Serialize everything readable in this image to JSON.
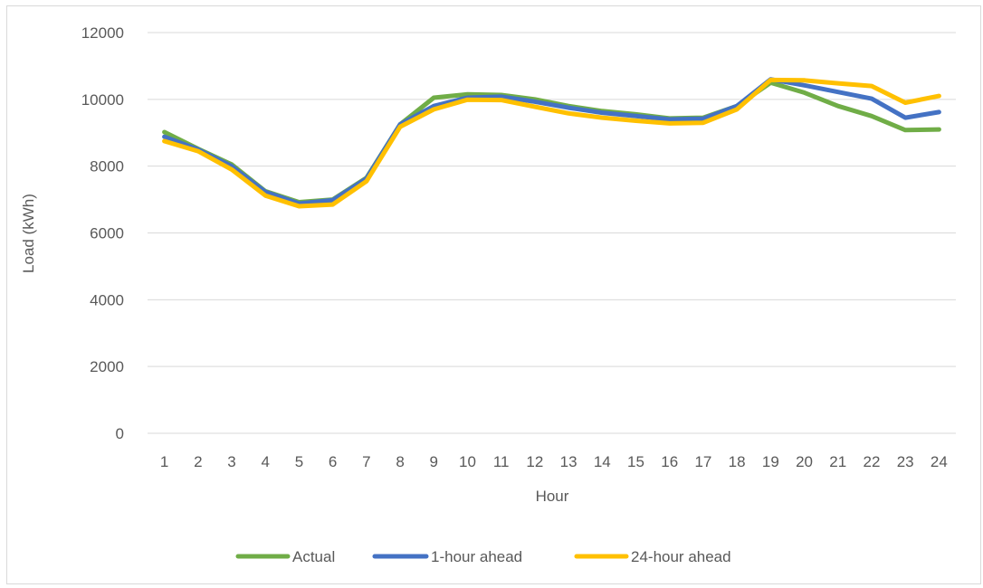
{
  "chart_data": {
    "type": "line",
    "title": "",
    "xlabel": "Hour",
    "ylabel": "Load (kWh)",
    "categories": [
      "1",
      "2",
      "3",
      "4",
      "5",
      "6",
      "7",
      "8",
      "9",
      "10",
      "11",
      "12",
      "13",
      "14",
      "15",
      "16",
      "17",
      "18",
      "19",
      "20",
      "21",
      "22",
      "23",
      "24"
    ],
    "yticks": [
      "0",
      "2000",
      "4000",
      "6000",
      "8000",
      "10000",
      "12000"
    ],
    "ylim": [
      0,
      12000
    ],
    "grid": true,
    "legend_position": "bottom",
    "series": [
      {
        "name": "Actual",
        "color": "#70ad47",
        "values": [
          9020,
          8520,
          8050,
          7250,
          6920,
          7000,
          7650,
          9250,
          10050,
          10150,
          10130,
          10000,
          9800,
          9650,
          9550,
          9430,
          9450,
          9800,
          10500,
          10200,
          9800,
          9500,
          9080,
          9100
        ]
      },
      {
        "name": "1-hour ahead",
        "color": "#4472c4",
        "values": [
          8880,
          8500,
          8000,
          7230,
          6880,
          6980,
          7630,
          9250,
          9800,
          10050,
          10080,
          9930,
          9750,
          9600,
          9500,
          9400,
          9420,
          9800,
          10600,
          10420,
          10220,
          10020,
          9450,
          9620
        ]
      },
      {
        "name": "24-hour ahead",
        "color": "#ffc000",
        "values": [
          8750,
          8450,
          7900,
          7120,
          6800,
          6850,
          7550,
          9180,
          9700,
          9990,
          9980,
          9780,
          9580,
          9450,
          9360,
          9280,
          9300,
          9700,
          10580,
          10570,
          10480,
          10400,
          9900,
          10100
        ]
      }
    ]
  }
}
